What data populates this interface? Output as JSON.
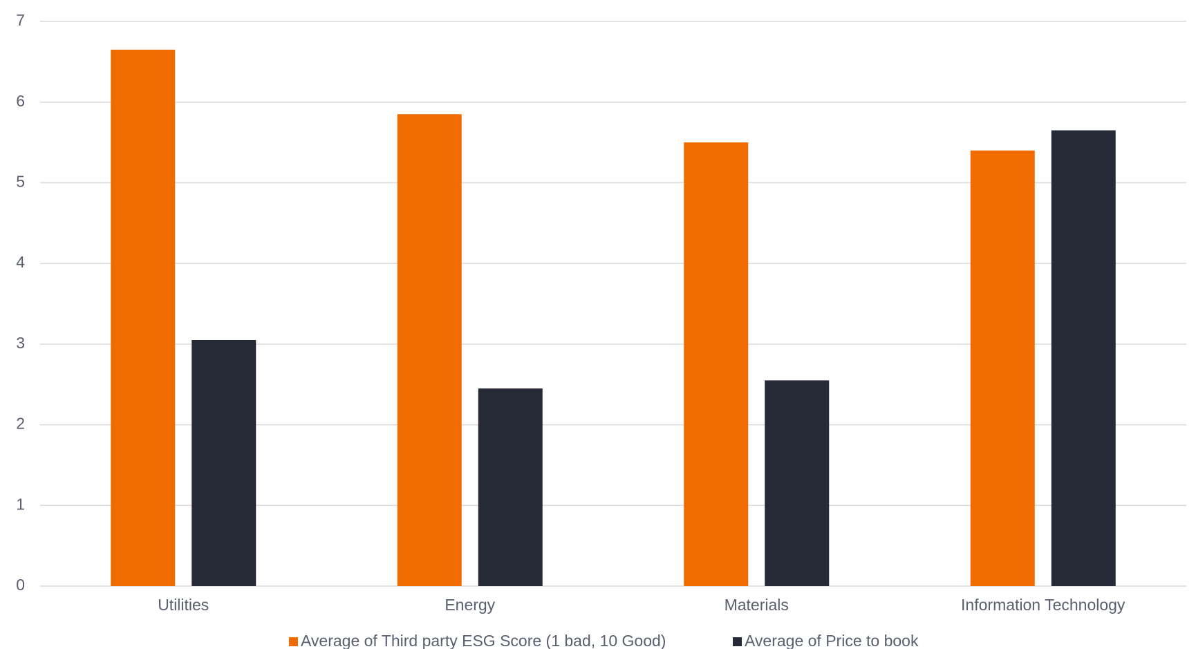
{
  "chart_data": {
    "type": "bar",
    "categories": [
      "Utilities",
      "Energy",
      "Materials",
      "Information Technology"
    ],
    "series": [
      {
        "name": "Average of Third party ESG Score (1 bad, 10 Good)",
        "color": "#f06c00",
        "values": [
          6.65,
          5.85,
          5.5,
          5.4
        ]
      },
      {
        "name": "Average of Price to book",
        "color": "#262a36",
        "values": [
          3.05,
          2.45,
          2.55,
          5.65
        ]
      }
    ],
    "ylim": [
      0,
      7
    ],
    "yticks": [
      0,
      1,
      2,
      3,
      4,
      5,
      6,
      7
    ],
    "grid": true,
    "legend": "bottom"
  }
}
